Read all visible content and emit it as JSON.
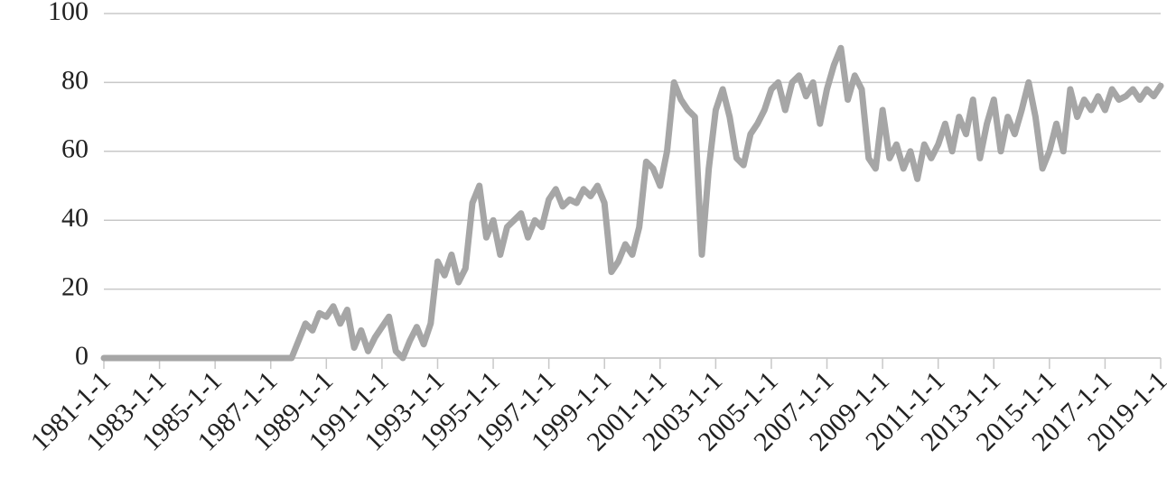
{
  "chart_data": {
    "type": "line",
    "color": "#a6a6a6",
    "grid": true,
    "ylim": [
      0,
      100
    ],
    "yticks": [
      0,
      20,
      40,
      60,
      80,
      100
    ],
    "xlim": [
      "1981-1-1",
      "2019-1-1"
    ],
    "xticks": [
      "1981-1-1",
      "1983-1-1",
      "1985-1-1",
      "1987-1-1",
      "1989-1-1",
      "1991-1-1",
      "1993-1-1",
      "1995-1-1",
      "1997-1-1",
      "1999-1-1",
      "2001-1-1",
      "2003-1-1",
      "2005-1-1",
      "2007-1-1",
      "2009-1-1",
      "2011-1-1",
      "2013-1-1",
      "2015-1-1",
      "2017-1-1",
      "2019-1-1"
    ],
    "x": [
      "1981-1-1",
      "1982-1-1",
      "1983-1-1",
      "1984-1-1",
      "1985-1-1",
      "1986-1-1",
      "1987-1-1",
      "1987-7-1",
      "1987-10-1",
      "1988-1-1",
      "1988-4-1",
      "1988-7-1",
      "1988-10-1",
      "1989-1-1",
      "1989-4-1",
      "1989-7-1",
      "1989-10-1",
      "1990-1-1",
      "1990-4-1",
      "1990-7-1",
      "1990-10-1",
      "1991-1-1",
      "1991-4-1",
      "1991-7-1",
      "1991-10-1",
      "1992-1-1",
      "1992-4-1",
      "1992-7-1",
      "1992-10-1",
      "1993-1-1",
      "1993-4-1",
      "1993-7-1",
      "1993-10-1",
      "1994-1-1",
      "1994-4-1",
      "1994-7-1",
      "1994-10-1",
      "1995-1-1",
      "1995-4-1",
      "1995-7-1",
      "1995-10-1",
      "1996-1-1",
      "1996-4-1",
      "1996-7-1",
      "1996-10-1",
      "1997-1-1",
      "1997-4-1",
      "1997-7-1",
      "1997-10-1",
      "1998-1-1",
      "1998-4-1",
      "1998-7-1",
      "1998-10-1",
      "1999-1-1",
      "1999-4-1",
      "1999-7-1",
      "1999-10-1",
      "2000-1-1",
      "2000-4-1",
      "2000-7-1",
      "2000-10-1",
      "2001-1-1",
      "2001-4-1",
      "2001-7-1",
      "2001-10-1",
      "2002-1-1",
      "2002-4-1",
      "2002-7-1",
      "2002-10-1",
      "2003-1-1",
      "2003-4-1",
      "2003-7-1",
      "2003-10-1",
      "2004-1-1",
      "2004-4-1",
      "2004-7-1",
      "2004-10-1",
      "2005-1-1",
      "2005-4-1",
      "2005-7-1",
      "2005-10-1",
      "2006-1-1",
      "2006-4-1",
      "2006-7-1",
      "2006-10-1",
      "2007-1-1",
      "2007-4-1",
      "2007-7-1",
      "2007-10-1",
      "2008-1-1",
      "2008-4-1",
      "2008-7-1",
      "2008-10-1",
      "2009-1-1",
      "2009-4-1",
      "2009-7-1",
      "2009-10-1",
      "2010-1-1",
      "2010-4-1",
      "2010-7-1",
      "2010-10-1",
      "2011-1-1",
      "2011-4-1",
      "2011-7-1",
      "2011-10-1",
      "2012-1-1",
      "2012-4-1",
      "2012-7-1",
      "2012-10-1",
      "2013-1-1",
      "2013-4-1",
      "2013-7-1",
      "2013-10-1",
      "2014-1-1",
      "2014-4-1",
      "2014-7-1",
      "2014-10-1",
      "2015-1-1",
      "2015-4-1",
      "2015-7-1",
      "2015-10-1",
      "2016-1-1",
      "2016-4-1",
      "2016-7-1",
      "2016-10-1",
      "2017-1-1",
      "2017-4-1",
      "2017-7-1",
      "2017-10-1",
      "2018-1-1",
      "2018-4-1",
      "2018-7-1",
      "2018-10-1",
      "2019-1-1"
    ],
    "values": [
      0,
      0,
      0,
      0,
      0,
      0,
      0,
      0,
      0,
      5,
      10,
      8,
      13,
      12,
      15,
      10,
      14,
      3,
      8,
      2,
      6,
      9,
      12,
      2,
      0,
      5,
      9,
      4,
      10,
      28,
      24,
      30,
      22,
      26,
      45,
      50,
      35,
      40,
      30,
      38,
      40,
      42,
      35,
      40,
      38,
      46,
      49,
      44,
      46,
      45,
      49,
      47,
      50,
      45,
      25,
      28,
      33,
      30,
      38,
      57,
      55,
      50,
      60,
      80,
      75,
      72,
      70,
      30,
      55,
      72,
      78,
      70,
      58,
      56,
      65,
      68,
      72,
      78,
      80,
      72,
      80,
      82,
      76,
      80,
      68,
      78,
      85,
      90,
      75,
      82,
      78,
      58,
      55,
      72,
      58,
      62,
      55,
      60,
      52,
      62,
      58,
      62,
      68,
      60,
      70,
      65,
      75,
      58,
      68,
      75,
      60,
      70,
      65,
      72,
      80,
      70,
      55,
      60,
      68,
      60,
      78,
      70,
      75,
      72,
      76,
      72,
      78,
      75,
      76,
      78,
      75,
      78,
      76,
      79
    ]
  }
}
